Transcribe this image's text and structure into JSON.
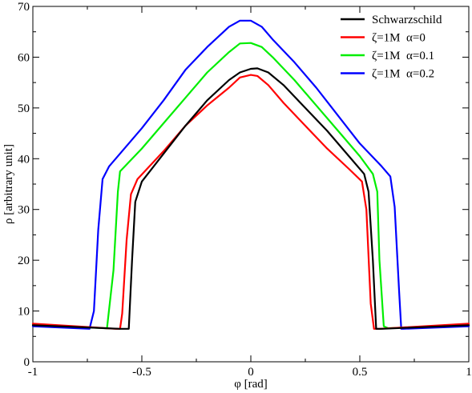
{
  "chart_data": {
    "type": "line",
    "xlabel": "φ [rad]",
    "ylabel": "ρ [arbitrary unit]",
    "xlim": [
      -1,
      1
    ],
    "ylim": [
      0,
      70
    ],
    "x_ticks": [
      -1,
      -0.5,
      0,
      0.5,
      1
    ],
    "x_tick_labels": [
      "-1",
      "-0.5",
      "0",
      "0.5",
      "1"
    ],
    "y_ticks": [
      0,
      10,
      20,
      30,
      40,
      50,
      60,
      70
    ],
    "y_tick_labels": [
      "0",
      "10",
      "20",
      "30",
      "40",
      "50",
      "60",
      "70"
    ],
    "grid": false,
    "legend_position": "top-right",
    "series": [
      {
        "name": "Schwarzschild",
        "color": "#000000",
        "points": [
          [
            -1,
            7.2
          ],
          [
            -0.6,
            6.5
          ],
          [
            -0.56,
            6.5
          ],
          [
            -0.545,
            20
          ],
          [
            -0.53,
            31.5
          ],
          [
            -0.5,
            35.5
          ],
          [
            -0.4,
            41
          ],
          [
            -0.3,
            46.5
          ],
          [
            -0.2,
            51.5
          ],
          [
            -0.1,
            55.5
          ],
          [
            -0.05,
            57
          ],
          [
            0,
            57.7
          ],
          [
            0.03,
            57.8
          ],
          [
            0.08,
            57
          ],
          [
            0.15,
            54.5
          ],
          [
            0.25,
            50
          ],
          [
            0.35,
            45.5
          ],
          [
            0.45,
            40.5
          ],
          [
            0.52,
            37
          ],
          [
            0.54,
            33.5
          ],
          [
            0.56,
            20
          ],
          [
            0.575,
            6.5
          ],
          [
            0.6,
            6.5
          ],
          [
            1,
            7.2
          ]
        ]
      },
      {
        "name": "ζ=1M  α=0",
        "color": "#ff0000",
        "points": [
          [
            -1,
            7.5
          ],
          [
            -0.62,
            6.5
          ],
          [
            -0.6,
            6.5
          ],
          [
            -0.59,
            9.5
          ],
          [
            -0.57,
            24
          ],
          [
            -0.55,
            33
          ],
          [
            -0.52,
            36
          ],
          [
            -0.4,
            41.5
          ],
          [
            -0.3,
            46.5
          ],
          [
            -0.2,
            50.5
          ],
          [
            -0.1,
            54
          ],
          [
            -0.05,
            56
          ],
          [
            0,
            56.5
          ],
          [
            0.03,
            56.3
          ],
          [
            0.08,
            54.5
          ],
          [
            0.15,
            51
          ],
          [
            0.25,
            46.5
          ],
          [
            0.35,
            42
          ],
          [
            0.45,
            38
          ],
          [
            0.51,
            35.5
          ],
          [
            0.53,
            30
          ],
          [
            0.55,
            11.5
          ],
          [
            0.565,
            6.5
          ],
          [
            0.59,
            6.5
          ],
          [
            1,
            7.5
          ]
        ]
      },
      {
        "name": "ζ=1M  α=0.1",
        "color": "#00ee00",
        "points": [
          [
            -1,
            7.3
          ],
          [
            -0.66,
            6.6
          ],
          [
            -0.63,
            18
          ],
          [
            -0.61,
            33.5
          ],
          [
            -0.6,
            37.5
          ],
          [
            -0.5,
            42
          ],
          [
            -0.4,
            47
          ],
          [
            -0.3,
            52
          ],
          [
            -0.2,
            57
          ],
          [
            -0.1,
            61
          ],
          [
            -0.05,
            62.7
          ],
          [
            0,
            62.8
          ],
          [
            0.05,
            62
          ],
          [
            0.1,
            60
          ],
          [
            0.2,
            55.5
          ],
          [
            0.3,
            50.5
          ],
          [
            0.4,
            45.5
          ],
          [
            0.5,
            40.5
          ],
          [
            0.56,
            37
          ],
          [
            0.58,
            33.5
          ],
          [
            0.59,
            20
          ],
          [
            0.61,
            7
          ],
          [
            0.63,
            6.6
          ],
          [
            1,
            7.3
          ]
        ]
      },
      {
        "name": "ζ=1M  α=0.2",
        "color": "#0000ff",
        "points": [
          [
            -1,
            7
          ],
          [
            -0.74,
            6.5
          ],
          [
            -0.72,
            10
          ],
          [
            -0.7,
            26
          ],
          [
            -0.68,
            36
          ],
          [
            -0.65,
            38.5
          ],
          [
            -0.5,
            46
          ],
          [
            -0.4,
            51.5
          ],
          [
            -0.3,
            57.5
          ],
          [
            -0.2,
            62
          ],
          [
            -0.1,
            66
          ],
          [
            -0.05,
            67.2
          ],
          [
            0,
            67.2
          ],
          [
            0.05,
            66
          ],
          [
            0.1,
            63.5
          ],
          [
            0.2,
            59
          ],
          [
            0.3,
            54
          ],
          [
            0.4,
            48.5
          ],
          [
            0.5,
            43
          ],
          [
            0.6,
            38.5
          ],
          [
            0.64,
            36.5
          ],
          [
            0.66,
            30.5
          ],
          [
            0.68,
            14
          ],
          [
            0.69,
            6.5
          ],
          [
            0.7,
            6.5
          ],
          [
            1,
            7
          ]
        ]
      }
    ]
  }
}
